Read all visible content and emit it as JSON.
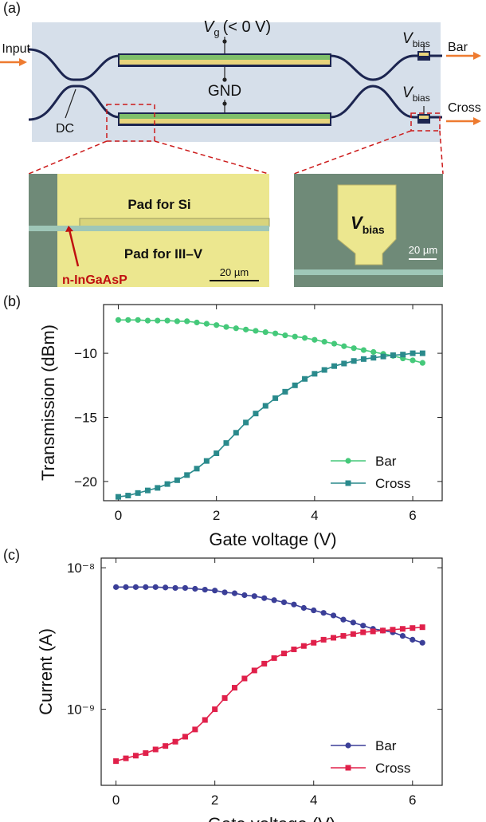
{
  "panel_a": {
    "label": "(a)",
    "input": "Input",
    "gate": {
      "symbol": "V",
      "subscript": "g",
      "condition": "(< 0 V)"
    },
    "ground": "GND",
    "coupler": "DC",
    "bias_top": {
      "symbol": "V",
      "subscript": "bias"
    },
    "bias_bottom": {
      "symbol": "V",
      "subscript": "bias"
    },
    "output_bar": "Bar",
    "output_cross": "Cross",
    "inset_left": {
      "pad_si": "Pad for Si",
      "pad_iii_v": "Pad for III–V",
      "material": "n-InGaAsP",
      "scale": "20 µm"
    },
    "inset_right": {
      "bias": {
        "symbol": "V",
        "subscript": "bias"
      },
      "scale": "20 µm"
    }
  },
  "chart_data": [
    {
      "type": "line",
      "panel_label": "(b)",
      "x_label": "Gate voltage (V)",
      "y_label": "Transmission (dBm)",
      "x": [
        0,
        0.2,
        0.4,
        0.6,
        0.8,
        1.0,
        1.2,
        1.4,
        1.6,
        1.8,
        2.0,
        2.2,
        2.4,
        2.6,
        2.8,
        3.0,
        3.2,
        3.4,
        3.6,
        3.8,
        4.0,
        4.2,
        4.4,
        4.6,
        4.8,
        5.0,
        5.2,
        5.4,
        5.6,
        5.8,
        6.0,
        6.2
      ],
      "xlim": [
        -0.3,
        6.6
      ],
      "xticks": [
        0,
        2,
        4,
        6
      ],
      "ylim": [
        -21.5,
        -6.2
      ],
      "yticks": [
        {
          "value": -20,
          "label": "−20"
        },
        {
          "value": -15,
          "label": "−15"
        },
        {
          "value": -10,
          "label": "−10"
        }
      ],
      "log_y": false,
      "legend": "lower right",
      "series": [
        {
          "name": "Bar",
          "color": "#45c97a",
          "marker": "circle",
          "values": [
            -7.4,
            -7.4,
            -7.4,
            -7.45,
            -7.45,
            -7.45,
            -7.5,
            -7.5,
            -7.6,
            -7.7,
            -7.8,
            -7.95,
            -8.05,
            -8.15,
            -8.25,
            -8.35,
            -8.45,
            -8.6,
            -8.7,
            -8.8,
            -8.95,
            -9.1,
            -9.25,
            -9.45,
            -9.6,
            -9.75,
            -9.9,
            -10.05,
            -10.2,
            -10.4,
            -10.55,
            -10.75
          ]
        },
        {
          "name": "Cross",
          "color": "#2a8a8c",
          "marker": "square",
          "values": [
            -21.2,
            -21.1,
            -20.9,
            -20.7,
            -20.5,
            -20.2,
            -19.9,
            -19.5,
            -19.0,
            -18.4,
            -17.8,
            -17.0,
            -16.2,
            -15.4,
            -14.7,
            -14.1,
            -13.5,
            -13.0,
            -12.5,
            -12.0,
            -11.6,
            -11.3,
            -11.0,
            -10.8,
            -10.6,
            -10.45,
            -10.35,
            -10.25,
            -10.15,
            -10.1,
            -10.0,
            -10.0
          ]
        }
      ]
    },
    {
      "type": "line",
      "panel_label": "(c)",
      "x_label": "Gate voltage (V)",
      "y_label": "Current (A)",
      "x": [
        0,
        0.2,
        0.4,
        0.6,
        0.8,
        1.0,
        1.2,
        1.4,
        1.6,
        1.8,
        2.0,
        2.2,
        2.4,
        2.6,
        2.8,
        3.0,
        3.2,
        3.4,
        3.6,
        3.8,
        4.0,
        4.2,
        4.4,
        4.6,
        4.8,
        5.0,
        5.2,
        5.4,
        5.6,
        5.8,
        6.0,
        6.2
      ],
      "xlim": [
        -0.3,
        6.6
      ],
      "xticks": [
        0,
        2,
        4,
        6
      ],
      "ylim": [
        2.9e-10,
        1.17e-08
      ],
      "yticks": [
        {
          "value": 1e-09,
          "label": "10⁻⁹"
        },
        {
          "value": 1e-08,
          "label": "10⁻⁸"
        }
      ],
      "log_y": true,
      "legend": "lower right",
      "series": [
        {
          "name": "Bar",
          "color": "#3b3f98",
          "marker": "circle",
          "values": [
            7.3e-09,
            7.3e-09,
            7.3e-09,
            7.3e-09,
            7.3e-09,
            7.25e-09,
            7.2e-09,
            7.2e-09,
            7.1e-09,
            7e-09,
            6.9e-09,
            6.7e-09,
            6.6e-09,
            6.4e-09,
            6.3e-09,
            6.1e-09,
            5.9e-09,
            5.7e-09,
            5.5e-09,
            5.2e-09,
            5e-09,
            4.8e-09,
            4.6e-09,
            4.3e-09,
            4.1e-09,
            3.9e-09,
            3.7e-09,
            3.6e-09,
            3.5e-09,
            3.3e-09,
            3.1e-09,
            2.95e-09
          ]
        },
        {
          "name": "Cross",
          "color": "#e0204a",
          "marker": "square",
          "values": [
            4.3e-10,
            4.5e-10,
            4.7e-10,
            4.9e-10,
            5.2e-10,
            5.5e-10,
            5.9e-10,
            6.4e-10,
            7.2e-10,
            8.4e-10,
            1e-09,
            1.2e-09,
            1.42e-09,
            1.65e-09,
            1.88e-09,
            2.1e-09,
            2.3e-09,
            2.48e-09,
            2.65e-09,
            2.8e-09,
            2.95e-09,
            3.1e-09,
            3.2e-09,
            3.3e-09,
            3.4e-09,
            3.5e-09,
            3.55e-09,
            3.6e-09,
            3.65e-09,
            3.7e-09,
            3.75e-09,
            3.8e-09
          ]
        }
      ]
    }
  ]
}
